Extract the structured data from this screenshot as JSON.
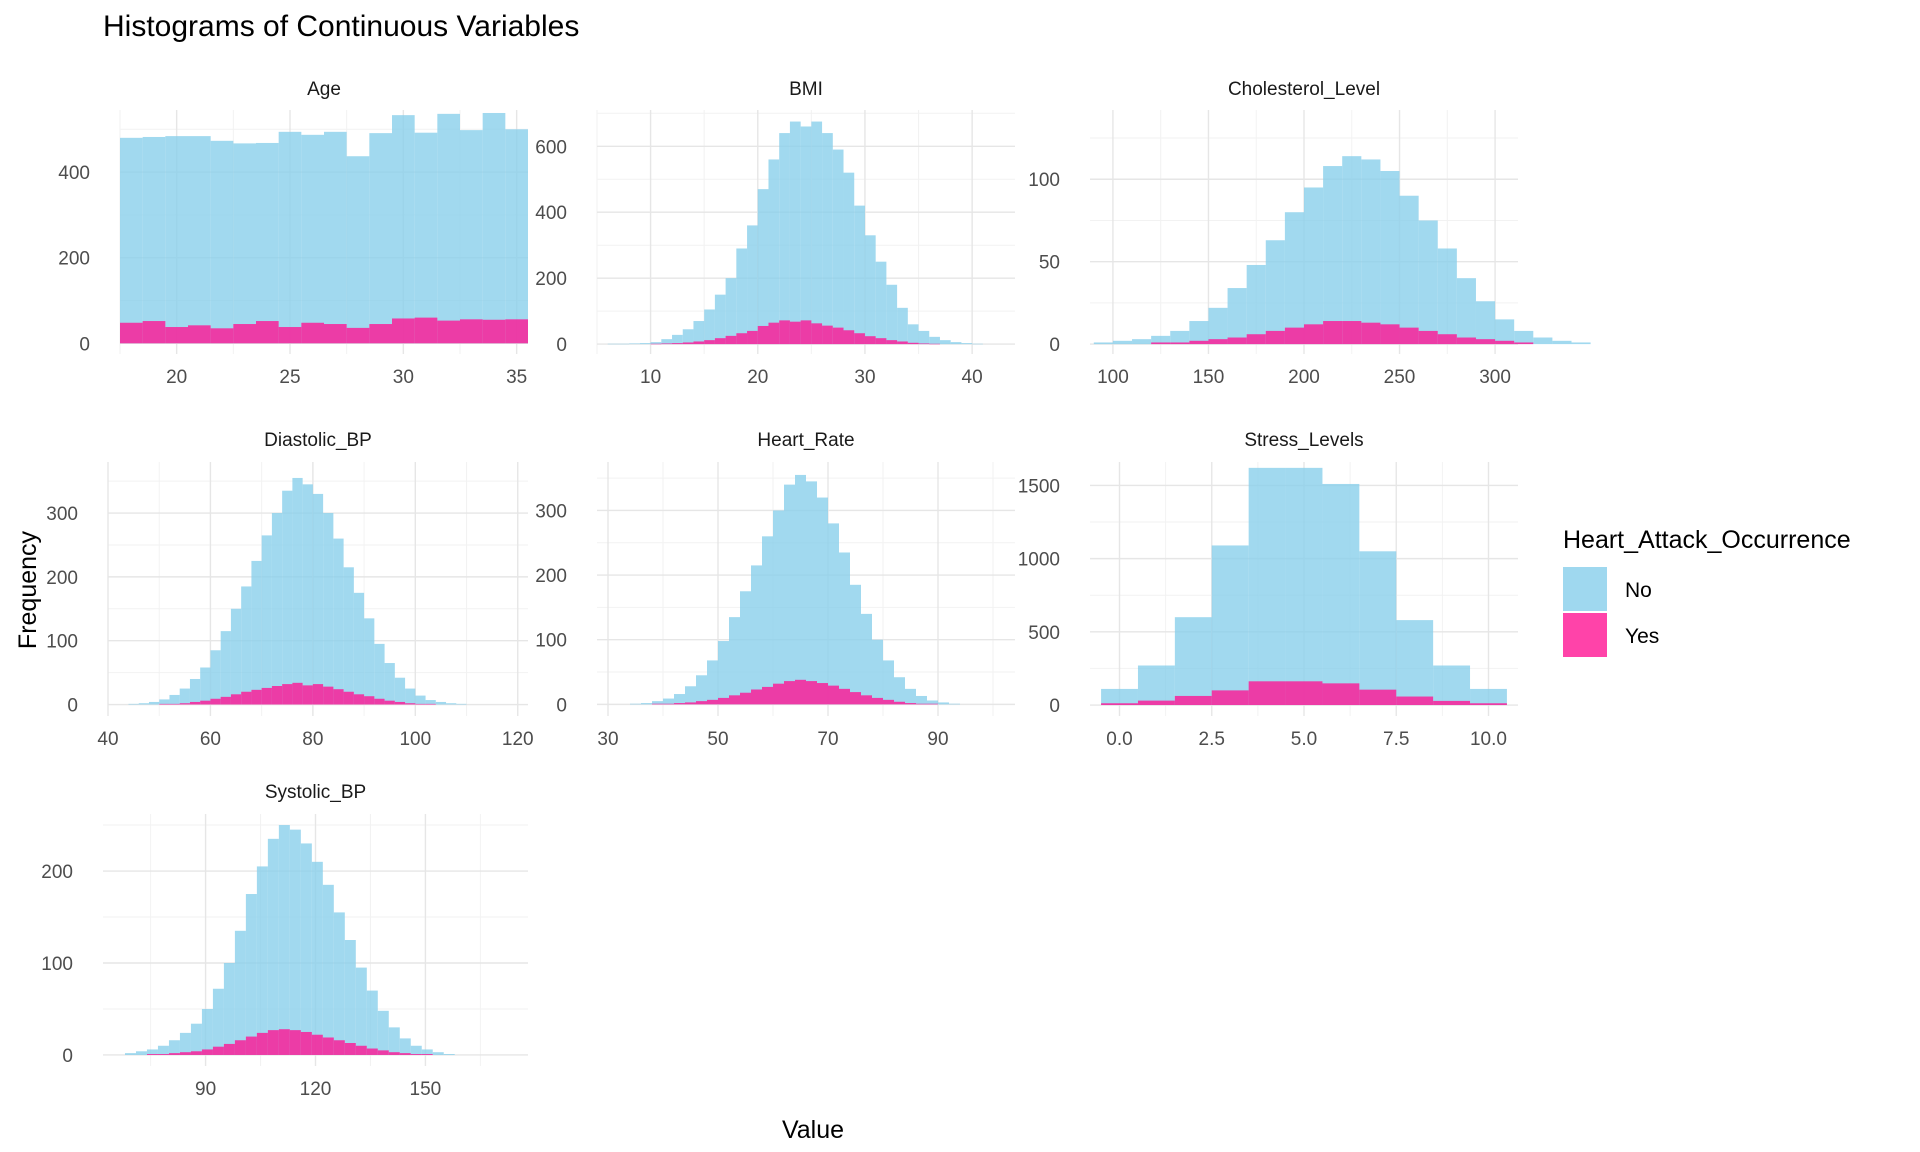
{
  "title": "Histograms of Continuous Variables",
  "chart_data": {
    "type": "bar",
    "title": "Histograms of Continuous Variables",
    "xlabel": "Value",
    "ylabel": "Frequency",
    "grid": true,
    "legend": {
      "title": "Heart_Attack_Occurrence",
      "placement": "right",
      "entries": [
        {
          "name": "No",
          "color": "#87CEEB"
        },
        {
          "name": "Yes",
          "color": "#FF1493"
        }
      ]
    },
    "colors": {
      "No": "#87CEEB",
      "Yes": "#FF1493"
    },
    "facets": [
      {
        "name": "Age",
        "xlim": [
          17.5,
          35.5
        ],
        "ylim": [
          -25,
          545
        ],
        "xticks": [
          20,
          25,
          30,
          35
        ],
        "yticks": [
          0,
          200,
          400
        ],
        "bins": {
          "start": 17.5,
          "width": 1
        },
        "series": [
          {
            "name": "No",
            "values": [
              480,
              482,
              484,
              484,
              473,
              467,
              468,
              494,
              487,
              494,
              437,
              491,
              533,
              492,
              536,
              498,
              538,
              500
            ]
          },
          {
            "name": "Yes",
            "values": [
              48,
              52,
              38,
              42,
              35,
              45,
              52,
              38,
              48,
              45,
              36,
              45,
              58,
              60,
              53,
              56,
              55,
              56
            ]
          }
        ]
      },
      {
        "name": "BMI",
        "xlim": [
          5,
          44
        ],
        "ylim": [
          -30,
          710
        ],
        "xticks": [
          10,
          20,
          30,
          40
        ],
        "yticks": [
          0,
          200,
          400,
          600
        ],
        "bins": {
          "start": 5,
          "width": 1
        },
        "series": [
          {
            "name": "No",
            "values": [
              0,
              1,
              1,
              2,
              3,
              6,
              15,
              28,
              45,
              70,
              105,
              150,
              200,
              290,
              360,
              470,
              560,
              640,
              675,
              660,
              675,
              640,
              590,
              520,
              420,
              330,
              250,
              180,
              110,
              60,
              40,
              22,
              12,
              6,
              3,
              1,
              0,
              0,
              0
            ]
          },
          {
            "name": "Yes",
            "values": [
              0,
              0,
              0,
              0,
              0,
              1,
              2,
              3,
              5,
              8,
              12,
              18,
              25,
              33,
              40,
              55,
              65,
              72,
              68,
              72,
              63,
              56,
              50,
              42,
              33,
              24,
              18,
              12,
              8,
              4,
              2,
              1,
              0,
              0,
              0,
              0,
              0,
              0,
              0
            ]
          }
        ]
      },
      {
        "name": "Cholesterol_Level",
        "xlim": [
          88,
          312
        ],
        "ylim": [
          -6,
          142
        ],
        "xticks": [
          100,
          150,
          200,
          250,
          300
        ],
        "yticks": [
          0,
          50,
          100
        ],
        "bins": {
          "start": 90,
          "width": 10
        },
        "series": [
          {
            "name": "No",
            "values": [
              1,
              2,
              3,
              5,
              8,
              14,
              22,
              34,
              48,
              63,
              80,
              95,
              108,
              114,
              112,
              105,
              90,
              75,
              58,
              40,
              26,
              15,
              8,
              4,
              2,
              1
            ]
          },
          {
            "name": "Yes",
            "values": [
              0,
              0,
              0,
              1,
              1,
              2,
              3,
              4,
              6,
              8,
              10,
              12,
              14,
              14,
              13,
              12,
              10,
              8,
              6,
              4,
              3,
              2,
              1,
              0,
              0,
              0
            ]
          }
        ]
      },
      {
        "name": "Diastolic_BP",
        "xlim": [
          40,
          122
        ],
        "ylim": [
          -18,
          380
        ],
        "xticks": [
          40,
          60,
          80,
          100,
          120
        ],
        "yticks": [
          0,
          100,
          200,
          300
        ],
        "bins": {
          "start": 44,
          "width": 2
        },
        "series": [
          {
            "name": "No",
            "values": [
              1,
              2,
              4,
              8,
              15,
              25,
              40,
              58,
              85,
              115,
              150,
              185,
              225,
              265,
              300,
              335,
              355,
              345,
              330,
              300,
              260,
              215,
              175,
              135,
              95,
              65,
              42,
              25,
              14,
              7,
              4,
              2,
              1,
              0,
              0,
              0,
              0,
              0,
              0
            ]
          },
          {
            "name": "Yes",
            "values": [
              0,
              0,
              0,
              1,
              1,
              2,
              4,
              6,
              9,
              12,
              16,
              20,
              23,
              26,
              29,
              32,
              34,
              30,
              32,
              28,
              24,
              20,
              16,
              13,
              9,
              6,
              4,
              2,
              1,
              1,
              0,
              0,
              0,
              0,
              0,
              0,
              0,
              0,
              0
            ]
          }
        ]
      },
      {
        "name": "Heart_Rate",
        "xlim": [
          28,
          104
        ],
        "ylim": [
          -18,
          375
        ],
        "xticks": [
          30,
          50,
          70,
          90
        ],
        "yticks": [
          0,
          100,
          200,
          300
        ],
        "bins": {
          "start": 34,
          "width": 2
        },
        "series": [
          {
            "name": "No",
            "values": [
              1,
              2,
              5,
              9,
              16,
              28,
              45,
              68,
              98,
              135,
              175,
              215,
              260,
              300,
              340,
              355,
              345,
              320,
              280,
              235,
              185,
              140,
              100,
              68,
              42,
              24,
              13,
              6,
              3,
              1,
              0,
              0,
              0,
              0
            ]
          },
          {
            "name": "Yes",
            "values": [
              0,
              0,
              1,
              1,
              2,
              3,
              5,
              7,
              10,
              14,
              18,
              23,
              27,
              32,
              36,
              38,
              36,
              33,
              29,
              24,
              19,
              14,
              10,
              7,
              4,
              2,
              1,
              1,
              0,
              0,
              0,
              0,
              0,
              0
            ]
          }
        ]
      },
      {
        "name": "Stress_Levels",
        "xlim": [
          -0.8,
          10.8
        ],
        "ylim": [
          -75,
          1660
        ],
        "xticks": [
          0.0,
          2.5,
          5.0,
          7.5,
          10.0
        ],
        "yticks": [
          0,
          500,
          1000,
          1500
        ],
        "xtick_labels": [
          "0.0",
          "2.5",
          "5.0",
          "7.5",
          "10.0"
        ],
        "bins": {
          "start": -0.5,
          "width": 1
        },
        "series": [
          {
            "name": "No",
            "values": [
              110,
              270,
              600,
              1090,
              1620,
              1620,
              1510,
              1050,
              580,
              270,
              110
            ]
          },
          {
            "name": "Yes",
            "values": [
              12,
              30,
              62,
              100,
              162,
              162,
              148,
              105,
              58,
              28,
              12
            ]
          }
        ]
      },
      {
        "name": "Systolic_BP",
        "xlim": [
          62,
          178
        ],
        "ylim": [
          -12,
          262
        ],
        "xticks": [
          90,
          120,
          150
        ],
        "yticks": [
          0,
          100,
          200
        ],
        "bins": {
          "start": 68,
          "width": 3
        },
        "series": [
          {
            "name": "No",
            "values": [
              2,
              4,
              6,
              10,
              16,
              24,
              34,
              50,
              72,
              100,
              135,
              175,
              205,
              235,
              250,
              245,
              230,
              210,
              185,
              155,
              125,
              95,
              70,
              48,
              30,
              18,
              10,
              6,
              3,
              1,
              0,
              0,
              0,
              0,
              0,
              0
            ]
          },
          {
            "name": "Yes",
            "values": [
              0,
              0,
              1,
              1,
              2,
              3,
              4,
              6,
              9,
              12,
              16,
              20,
              24,
              27,
              28,
              27,
              25,
              22,
              19,
              16,
              13,
              10,
              7,
              5,
              3,
              2,
              1,
              1,
              0,
              0,
              0,
              0,
              0,
              0,
              0,
              0
            ]
          }
        ]
      }
    ]
  }
}
